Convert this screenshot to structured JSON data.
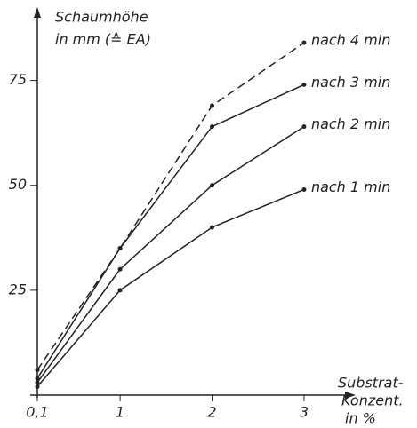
{
  "chart_data": {
    "type": "line",
    "y_label": [
      "Schaumhöhe",
      "in mm (≙ EA)"
    ],
    "x_label": [
      "Substrat-",
      "Konzent.",
      "in %"
    ],
    "x": [
      0.1,
      1,
      2,
      3
    ],
    "series": [
      {
        "name": "nach 4 min",
        "color": "#222222",
        "dashed": true,
        "values": [
          6,
          35,
          69,
          84
        ]
      },
      {
        "name": "nach 3 min",
        "color": "#222222",
        "dashed": false,
        "values": [
          4,
          35,
          64,
          74
        ]
      },
      {
        "name": "nach 2 min",
        "color": "#222222",
        "dashed": false,
        "values": [
          3,
          30,
          50,
          64
        ]
      },
      {
        "name": "nach 1 min",
        "color": "#222222",
        "dashed": false,
        "values": [
          2,
          25,
          40,
          49
        ]
      }
    ],
    "xlim": [
      0.1,
      3.6
    ],
    "ylim": [
      0,
      91
    ],
    "xticks": [
      {
        "value": 0.1,
        "label": "0,1"
      },
      1,
      2,
      3
    ],
    "yticks": [
      25,
      50,
      75
    ],
    "grid": false
  }
}
